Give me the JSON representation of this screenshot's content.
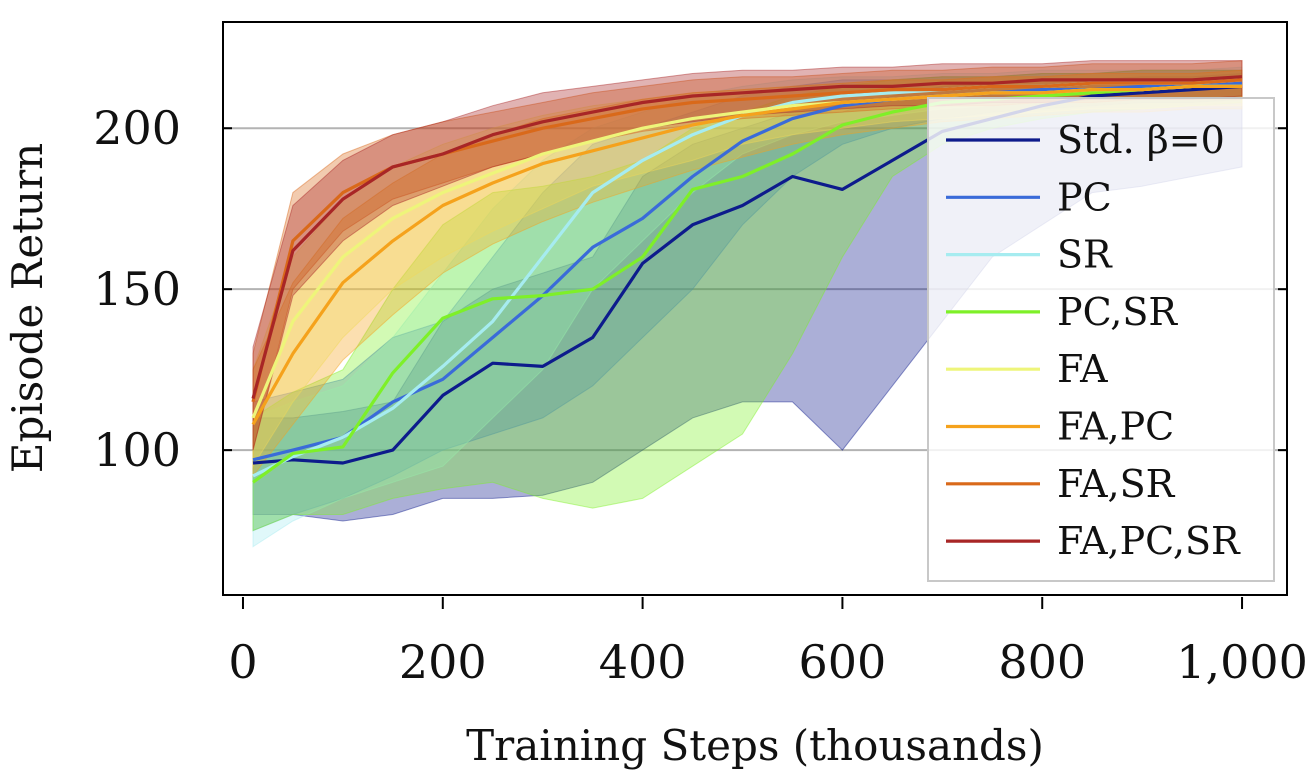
{
  "chart_data": {
    "type": "line",
    "title": "",
    "xlabel": "Training Steps (thousands)",
    "ylabel": "Episode Return",
    "xlim": [
      -20,
      1045
    ],
    "ylim": [
      55,
      233
    ],
    "xticks": [
      0,
      200,
      400,
      600,
      800,
      1000
    ],
    "xtick_labels": [
      "0",
      "200",
      "400",
      "600",
      "800",
      "1,000"
    ],
    "yticks": [
      100,
      150,
      200
    ],
    "ytick_labels": [
      "100",
      "150",
      "200"
    ],
    "grid": "horizontal",
    "legend_position": "right",
    "x": [
      10,
      50,
      100,
      150,
      200,
      250,
      300,
      350,
      400,
      450,
      500,
      550,
      600,
      650,
      700,
      750,
      800,
      850,
      900,
      950,
      1000
    ],
    "series": [
      {
        "name": "Std. β=0",
        "color": "#0d1b8c",
        "values": [
          96,
          97,
          96,
          100,
          117,
          127,
          126,
          135,
          158,
          170,
          176,
          185,
          181,
          190,
          199,
          203,
          207,
          210,
          211,
          212,
          213
        ],
        "lower": [
          80,
          80,
          78,
          80,
          85,
          85,
          86,
          90,
          100,
          110,
          115,
          115,
          100,
          120,
          140,
          160,
          170,
          180,
          182,
          185,
          188
        ],
        "upper": [
          110,
          110,
          112,
          115,
          140,
          150,
          155,
          160,
          185,
          195,
          200,
          205,
          205,
          210,
          213,
          214,
          215,
          215,
          216,
          216,
          217
        ]
      },
      {
        "name": "PC",
        "color": "#3a6bd9",
        "values": [
          97,
          100,
          104,
          115,
          122,
          135,
          148,
          163,
          172,
          185,
          196,
          203,
          207,
          209,
          210,
          211,
          212,
          212,
          213,
          213,
          214
        ],
        "lower": [
          75,
          80,
          85,
          92,
          100,
          105,
          110,
          120,
          135,
          150,
          170,
          185,
          195,
          200,
          203,
          205,
          206,
          207,
          208,
          208,
          209
        ],
        "upper": [
          115,
          118,
          122,
          135,
          140,
          160,
          180,
          195,
          200,
          205,
          210,
          213,
          215,
          215,
          216,
          216,
          217,
          217,
          218,
          218,
          218
        ]
      },
      {
        "name": "SR",
        "color": "#a6ecf0",
        "values": [
          92,
          98,
          104,
          113,
          126,
          140,
          160,
          180,
          190,
          198,
          204,
          208,
          210,
          211,
          212,
          213,
          213,
          214,
          214,
          214,
          215
        ],
        "lower": [
          70,
          78,
          85,
          90,
          95,
          110,
          125,
          150,
          165,
          180,
          192,
          198,
          202,
          204,
          206,
          207,
          208,
          208,
          209,
          209,
          210
        ],
        "upper": [
          110,
          115,
          120,
          135,
          155,
          175,
          190,
          200,
          205,
          210,
          213,
          215,
          216,
          216,
          217,
          217,
          218,
          218,
          218,
          218,
          219
        ]
      },
      {
        "name": "PC,SR",
        "color": "#7ef028",
        "values": [
          90,
          99,
          101,
          124,
          141,
          147,
          148,
          150,
          160,
          181,
          185,
          192,
          201,
          205,
          208,
          209,
          210,
          211,
          212,
          213,
          213
        ],
        "lower": [
          75,
          80,
          80,
          85,
          88,
          90,
          85,
          82,
          85,
          95,
          105,
          130,
          160,
          185,
          195,
          200,
          203,
          205,
          206,
          207,
          208
        ],
        "upper": [
          110,
          118,
          125,
          150,
          170,
          180,
          182,
          185,
          190,
          200,
          205,
          210,
          213,
          215,
          216,
          216,
          217,
          217,
          218,
          218,
          218
        ]
      },
      {
        "name": "FA",
        "color": "#eef57a",
        "values": [
          110,
          140,
          160,
          172,
          180,
          186,
          192,
          196,
          200,
          203,
          205,
          207,
          208,
          209,
          210,
          211,
          211,
          212,
          212,
          213,
          213
        ],
        "lower": [
          95,
          115,
          135,
          150,
          160,
          168,
          175,
          182,
          186,
          190,
          195,
          198,
          200,
          202,
          203,
          204,
          205,
          206,
          206,
          207,
          207
        ],
        "upper": [
          125,
          160,
          178,
          188,
          195,
          200,
          204,
          207,
          209,
          211,
          212,
          213,
          214,
          215,
          215,
          216,
          216,
          217,
          217,
          217,
          218
        ]
      },
      {
        "name": "FA,PC",
        "color": "#f5a21c",
        "values": [
          108,
          130,
          152,
          165,
          176,
          183,
          189,
          193,
          197,
          201,
          204,
          206,
          208,
          209,
          210,
          211,
          211,
          212,
          212,
          213,
          213
        ],
        "lower": [
          92,
          108,
          128,
          142,
          155,
          164,
          171,
          177,
          182,
          187,
          191,
          195,
          198,
          200,
          202,
          203,
          204,
          205,
          205,
          206,
          206
        ],
        "upper": [
          125,
          152,
          172,
          183,
          192,
          198,
          203,
          206,
          209,
          211,
          212,
          213,
          214,
          215,
          215,
          216,
          216,
          217,
          217,
          217,
          218
        ]
      },
      {
        "name": "FA,SR",
        "color": "#d9691a",
        "values": [
          115,
          165,
          180,
          188,
          192,
          196,
          200,
          203,
          206,
          208,
          209,
          210,
          211,
          212,
          212,
          213,
          213,
          214,
          214,
          214,
          215
        ],
        "lower": [
          100,
          150,
          168,
          178,
          183,
          188,
          192,
          196,
          199,
          201,
          203,
          204,
          205,
          206,
          207,
          207,
          208,
          208,
          209,
          209,
          209
        ],
        "upper": [
          130,
          180,
          192,
          198,
          202,
          205,
          208,
          211,
          213,
          215,
          216,
          216,
          217,
          218,
          218,
          219,
          219,
          220,
          220,
          220,
          221
        ]
      },
      {
        "name": "FA,PC,SR",
        "color": "#a82626",
        "values": [
          116,
          162,
          178,
          188,
          192,
          198,
          202,
          205,
          208,
          210,
          211,
          212,
          213,
          213,
          214,
          214,
          215,
          215,
          215,
          215,
          216
        ],
        "lower": [
          100,
          148,
          165,
          176,
          182,
          188,
          192,
          196,
          200,
          202,
          204,
          205,
          206,
          207,
          207,
          208,
          208,
          209,
          209,
          209,
          210
        ],
        "upper": [
          132,
          176,
          190,
          198,
          202,
          207,
          211,
          213,
          215,
          217,
          218,
          218,
          219,
          219,
          220,
          220,
          220,
          221,
          221,
          221,
          221
        ]
      }
    ]
  }
}
